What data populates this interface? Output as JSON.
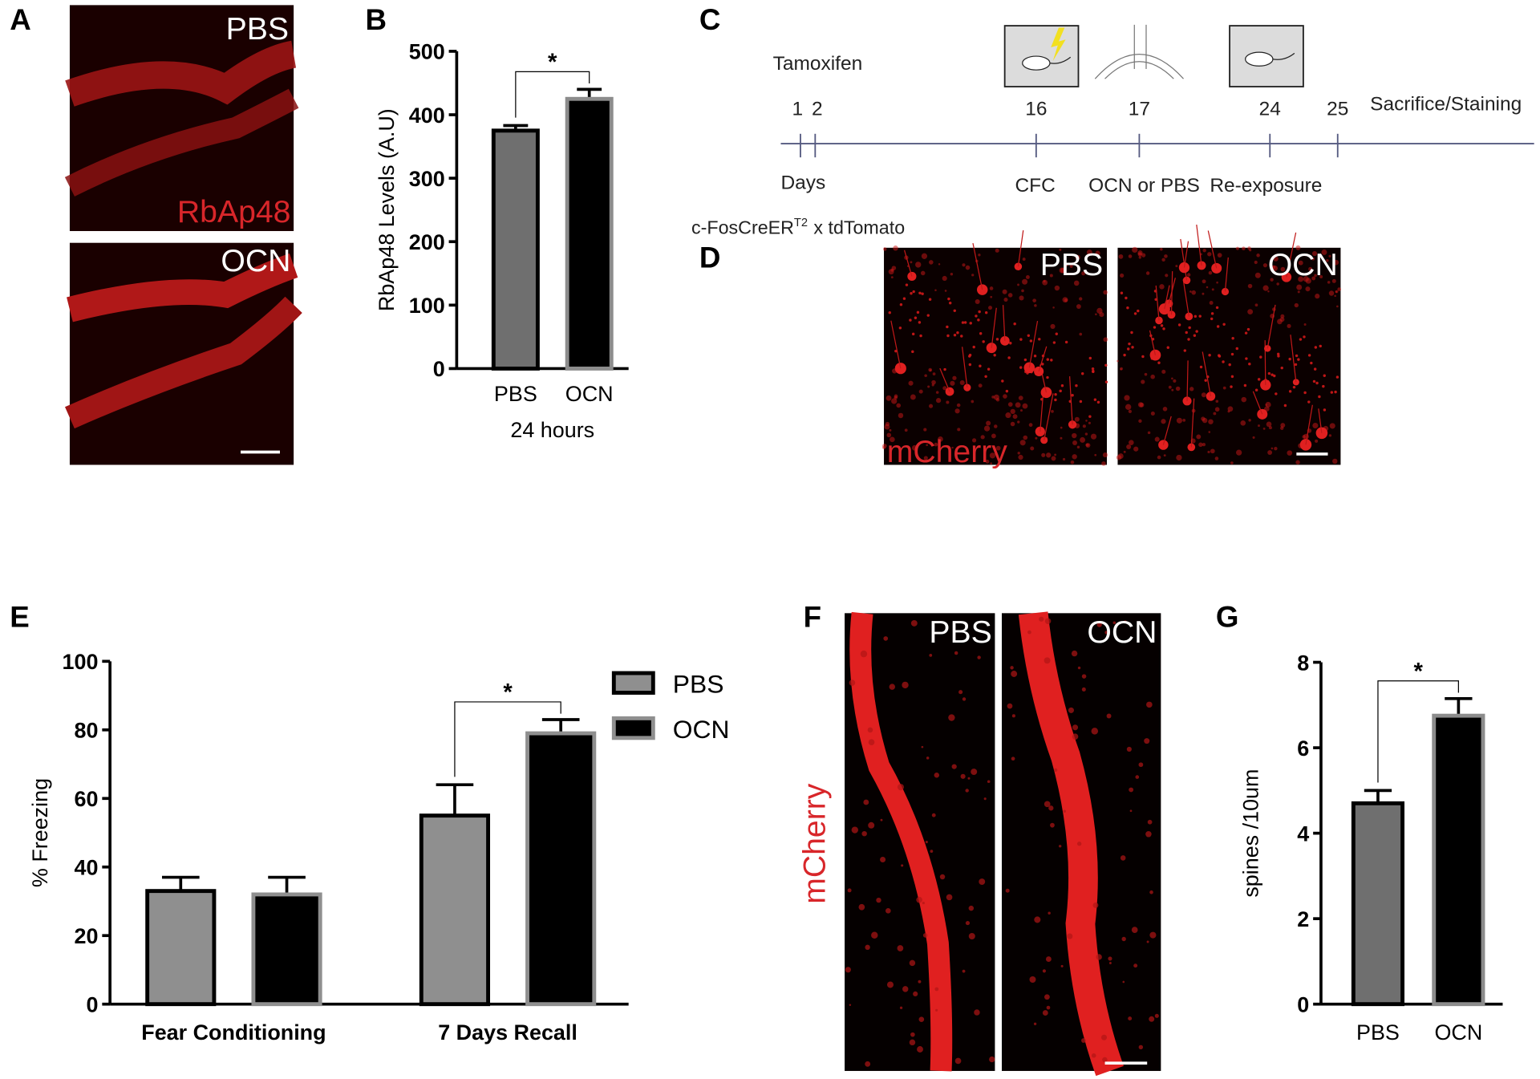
{
  "panel_letters": [
    "A",
    "B",
    "C",
    "D",
    "E",
    "F",
    "G"
  ],
  "panel_a": {
    "labels": [
      "PBS",
      "RbAp48",
      "OCN"
    ]
  },
  "panel_c": {
    "tamoxifen": "Tamoxifen",
    "days": [
      "1",
      "2",
      "16",
      "17",
      "24",
      "25"
    ],
    "end": "Sacrifice/Staining",
    "axis": "Days",
    "events": [
      "CFC",
      "OCN  or PBS",
      "Re-exposure"
    ],
    "mouse_line": "c-FosCreER",
    "superscript": "T2",
    "cross": "x tdTomato"
  },
  "panel_d": {
    "labels": [
      "PBS",
      "OCN",
      "mCherry"
    ]
  },
  "panel_f": {
    "labels": [
      "PBS",
      "OCN",
      "mCherry"
    ]
  },
  "chart_data": [
    {
      "type": "bar",
      "ylabel": "RbAp48 Levels  (A.U)",
      "xlabel": "24 hours",
      "categories": [
        "PBS",
        "OCN"
      ],
      "values": [
        375,
        425
      ],
      "errors": [
        8,
        15
      ],
      "colors": [
        "#6f6f6f",
        "#000000"
      ],
      "edge_colors": [
        "#000000",
        "#8c8c8c"
      ],
      "ylim": [
        0,
        500
      ],
      "yticks": [
        0,
        100,
        200,
        300,
        400,
        500
      ],
      "annotations": [
        "*"
      ]
    },
    {
      "type": "grouped_bar",
      "ylabel": "% Freezing",
      "categories": [
        "Fear Conditioning",
        "7 Days Recall"
      ],
      "series": [
        {
          "name": "PBS",
          "color": "#8f8f8f",
          "edge_color": "#000000",
          "values": [
            33,
            55
          ],
          "errors": [
            4,
            9
          ]
        },
        {
          "name": "OCN",
          "color": "#000000",
          "edge_color": "#8f8f8f",
          "values": [
            32,
            79
          ],
          "errors": [
            5,
            4
          ]
        }
      ],
      "ylim": [
        0,
        100
      ],
      "yticks": [
        0,
        20,
        40,
        60,
        80,
        100
      ],
      "legend": "upper right",
      "annotations": [
        "*"
      ]
    },
    {
      "type": "bar",
      "ylabel": "spines /10um",
      "categories": [
        "PBS",
        "OCN"
      ],
      "values": [
        4.7,
        6.75
      ],
      "errors": [
        0.3,
        0.4
      ],
      "colors": [
        "#6f6f6f",
        "#000000"
      ],
      "edge_colors": [
        "#000000",
        "#8c8c8c"
      ],
      "ylim": [
        0,
        8
      ],
      "yticks": [
        0,
        2,
        4,
        6,
        8
      ],
      "annotations": [
        "*"
      ]
    }
  ]
}
